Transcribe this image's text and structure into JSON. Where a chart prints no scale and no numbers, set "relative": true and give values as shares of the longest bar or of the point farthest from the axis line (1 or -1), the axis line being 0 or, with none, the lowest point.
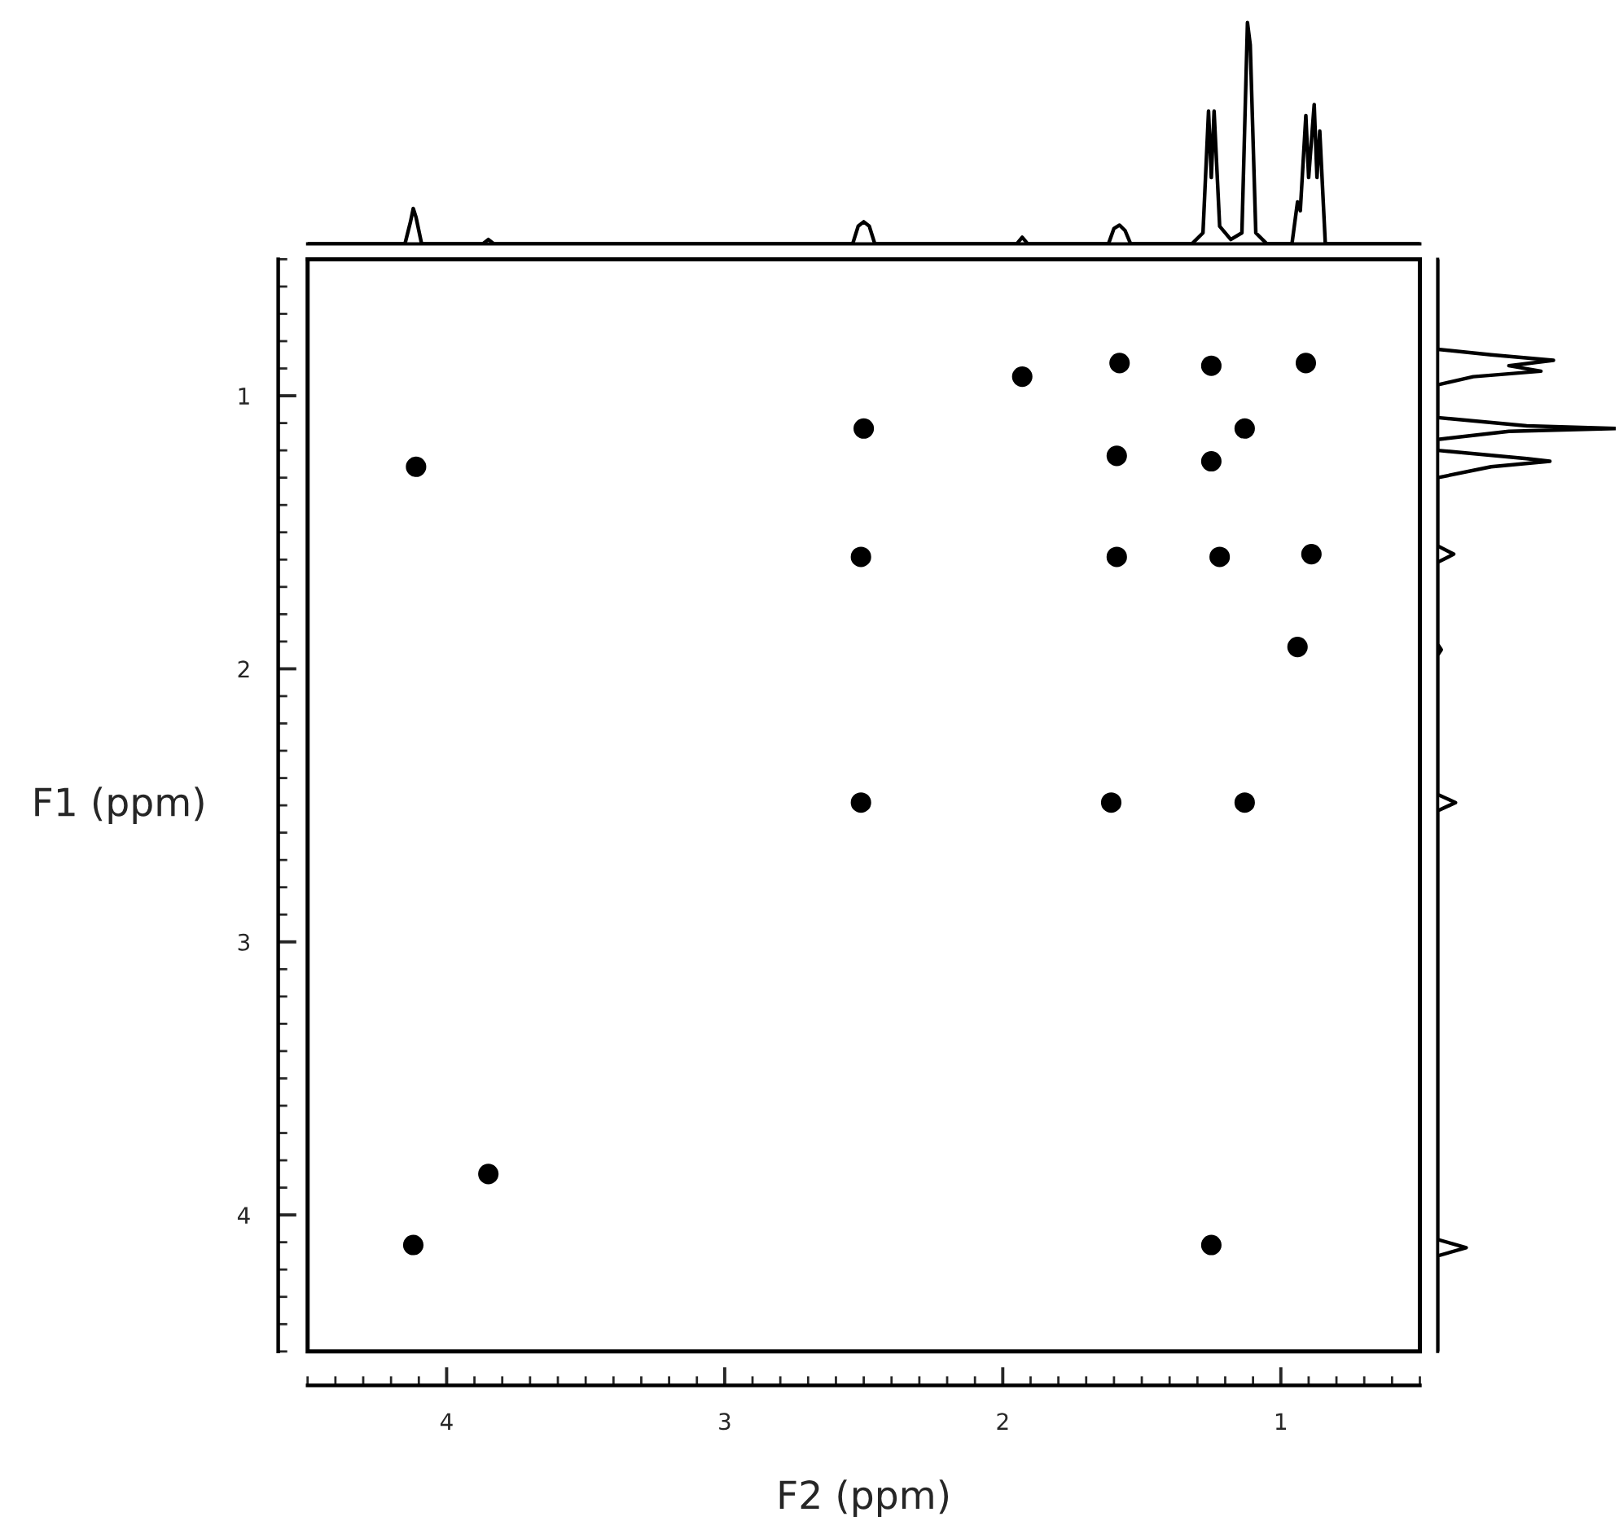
{
  "chart_data": [
    {
      "type": "line",
      "relative": true,
      "color": "#000000",
      "xlim": [
        4.5,
        0.5
      ],
      "x": [
        4.5,
        4.15,
        4.13,
        4.12,
        4.11,
        4.09,
        3.87,
        3.85,
        3.83,
        2.54,
        2.52,
        2.5,
        2.48,
        2.46,
        1.95,
        1.93,
        1.91,
        1.62,
        1.6,
        1.58,
        1.56,
        1.54,
        1.32,
        1.28,
        1.26,
        1.25,
        1.24,
        1.22,
        1.18,
        1.14,
        1.12,
        1.11,
        1.09,
        1.05,
        0.96,
        0.94,
        0.93,
        0.91,
        0.9,
        0.88,
        0.87,
        0.86,
        0.84,
        0.5
      ],
      "values": [
        0,
        0,
        0.1,
        0.16,
        0.12,
        0,
        0,
        0.02,
        0,
        0,
        0.08,
        0.1,
        0.08,
        0,
        0,
        0.03,
        0,
        0,
        0.07,
        0.085,
        0.06,
        0,
        0,
        0.05,
        0.6,
        0.3,
        0.6,
        0.08,
        0.02,
        0.05,
        1.0,
        0.9,
        0.05,
        0,
        0,
        0.19,
        0.15,
        0.58,
        0.3,
        0.63,
        0.3,
        0.51,
        0,
        0
      ]
    },
    {
      "type": "scatter",
      "xlabel": "F2 (ppm)",
      "ylabel": "F1 (ppm)",
      "xlim": [
        4.5,
        0.5
      ],
      "ylim": [
        4.5,
        0.5
      ],
      "xticks": [
        4,
        3,
        2,
        1
      ],
      "yticks": [
        1,
        2,
        3,
        4
      ],
      "marker": "circle",
      "grid": false,
      "color": "#000000",
      "x": [
        1.58,
        1.93,
        1.25,
        0.91,
        1.13,
        1.25,
        2.5,
        1.59,
        4.11,
        2.51,
        1.59,
        1.22,
        0.89,
        0.94,
        2.51,
        1.61,
        1.13,
        3.85,
        4.12,
        1.25
      ],
      "values": [
        0.88,
        0.93,
        0.89,
        0.88,
        1.12,
        1.24,
        1.12,
        1.22,
        1.26,
        1.59,
        1.59,
        1.59,
        1.58,
        1.92,
        2.49,
        2.49,
        2.49,
        3.85,
        4.11,
        4.11
      ]
    },
    {
      "type": "line",
      "relative": true,
      "orientation": "horizontal",
      "color": "#000000",
      "ylim": [
        4.5,
        0.5
      ],
      "x": [
        0.5,
        0.83,
        0.85,
        0.87,
        0.89,
        0.91,
        0.93,
        0.96,
        1.08,
        1.11,
        1.12,
        1.13,
        1.16,
        1.2,
        1.23,
        1.24,
        1.26,
        1.3,
        1.55,
        1.58,
        1.61,
        1.91,
        1.93,
        1.95,
        2.46,
        2.49,
        2.52,
        4.09,
        4.12,
        4.15,
        4.5
      ],
      "values": [
        0,
        0,
        0.3,
        0.65,
        0.4,
        0.58,
        0.2,
        0,
        0,
        0.5,
        1.0,
        0.4,
        0,
        0,
        0.5,
        0.63,
        0.3,
        0,
        0,
        0.09,
        0,
        0,
        0.02,
        0,
        0,
        0.1,
        0,
        0,
        0.16,
        0,
        0
      ]
    }
  ]
}
